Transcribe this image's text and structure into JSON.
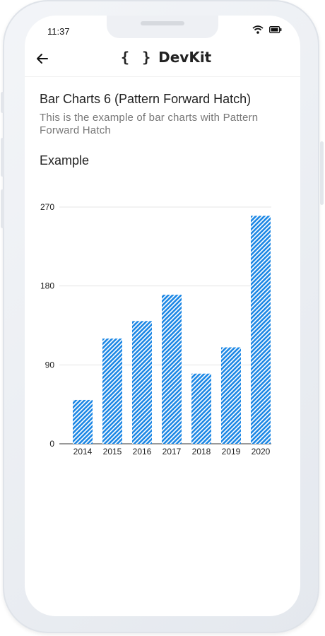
{
  "status_bar": {
    "time": "11:37"
  },
  "app_bar": {
    "brand_braces": "{ }",
    "brand_name": "DevKit",
    "back_icon": "arrow-left-icon"
  },
  "page": {
    "title": "Bar Charts 6 (Pattern Forward Hatch)",
    "description": "This is the example of bar charts with Pattern Forward Hatch",
    "section_heading": "Example"
  },
  "colors": {
    "bar": "#1e88e5",
    "hatch": "#ffffff",
    "grid": "#e5e5e5"
  },
  "chart_data": {
    "type": "bar",
    "pattern": "forward-hatch",
    "categories": [
      "2014",
      "2015",
      "2016",
      "2017",
      "2018",
      "2019",
      "2020"
    ],
    "values": [
      50,
      120,
      140,
      170,
      80,
      110,
      260
    ],
    "ylim": [
      0,
      270
    ],
    "yticks": [
      0,
      90,
      180,
      270
    ],
    "grid": true
  }
}
